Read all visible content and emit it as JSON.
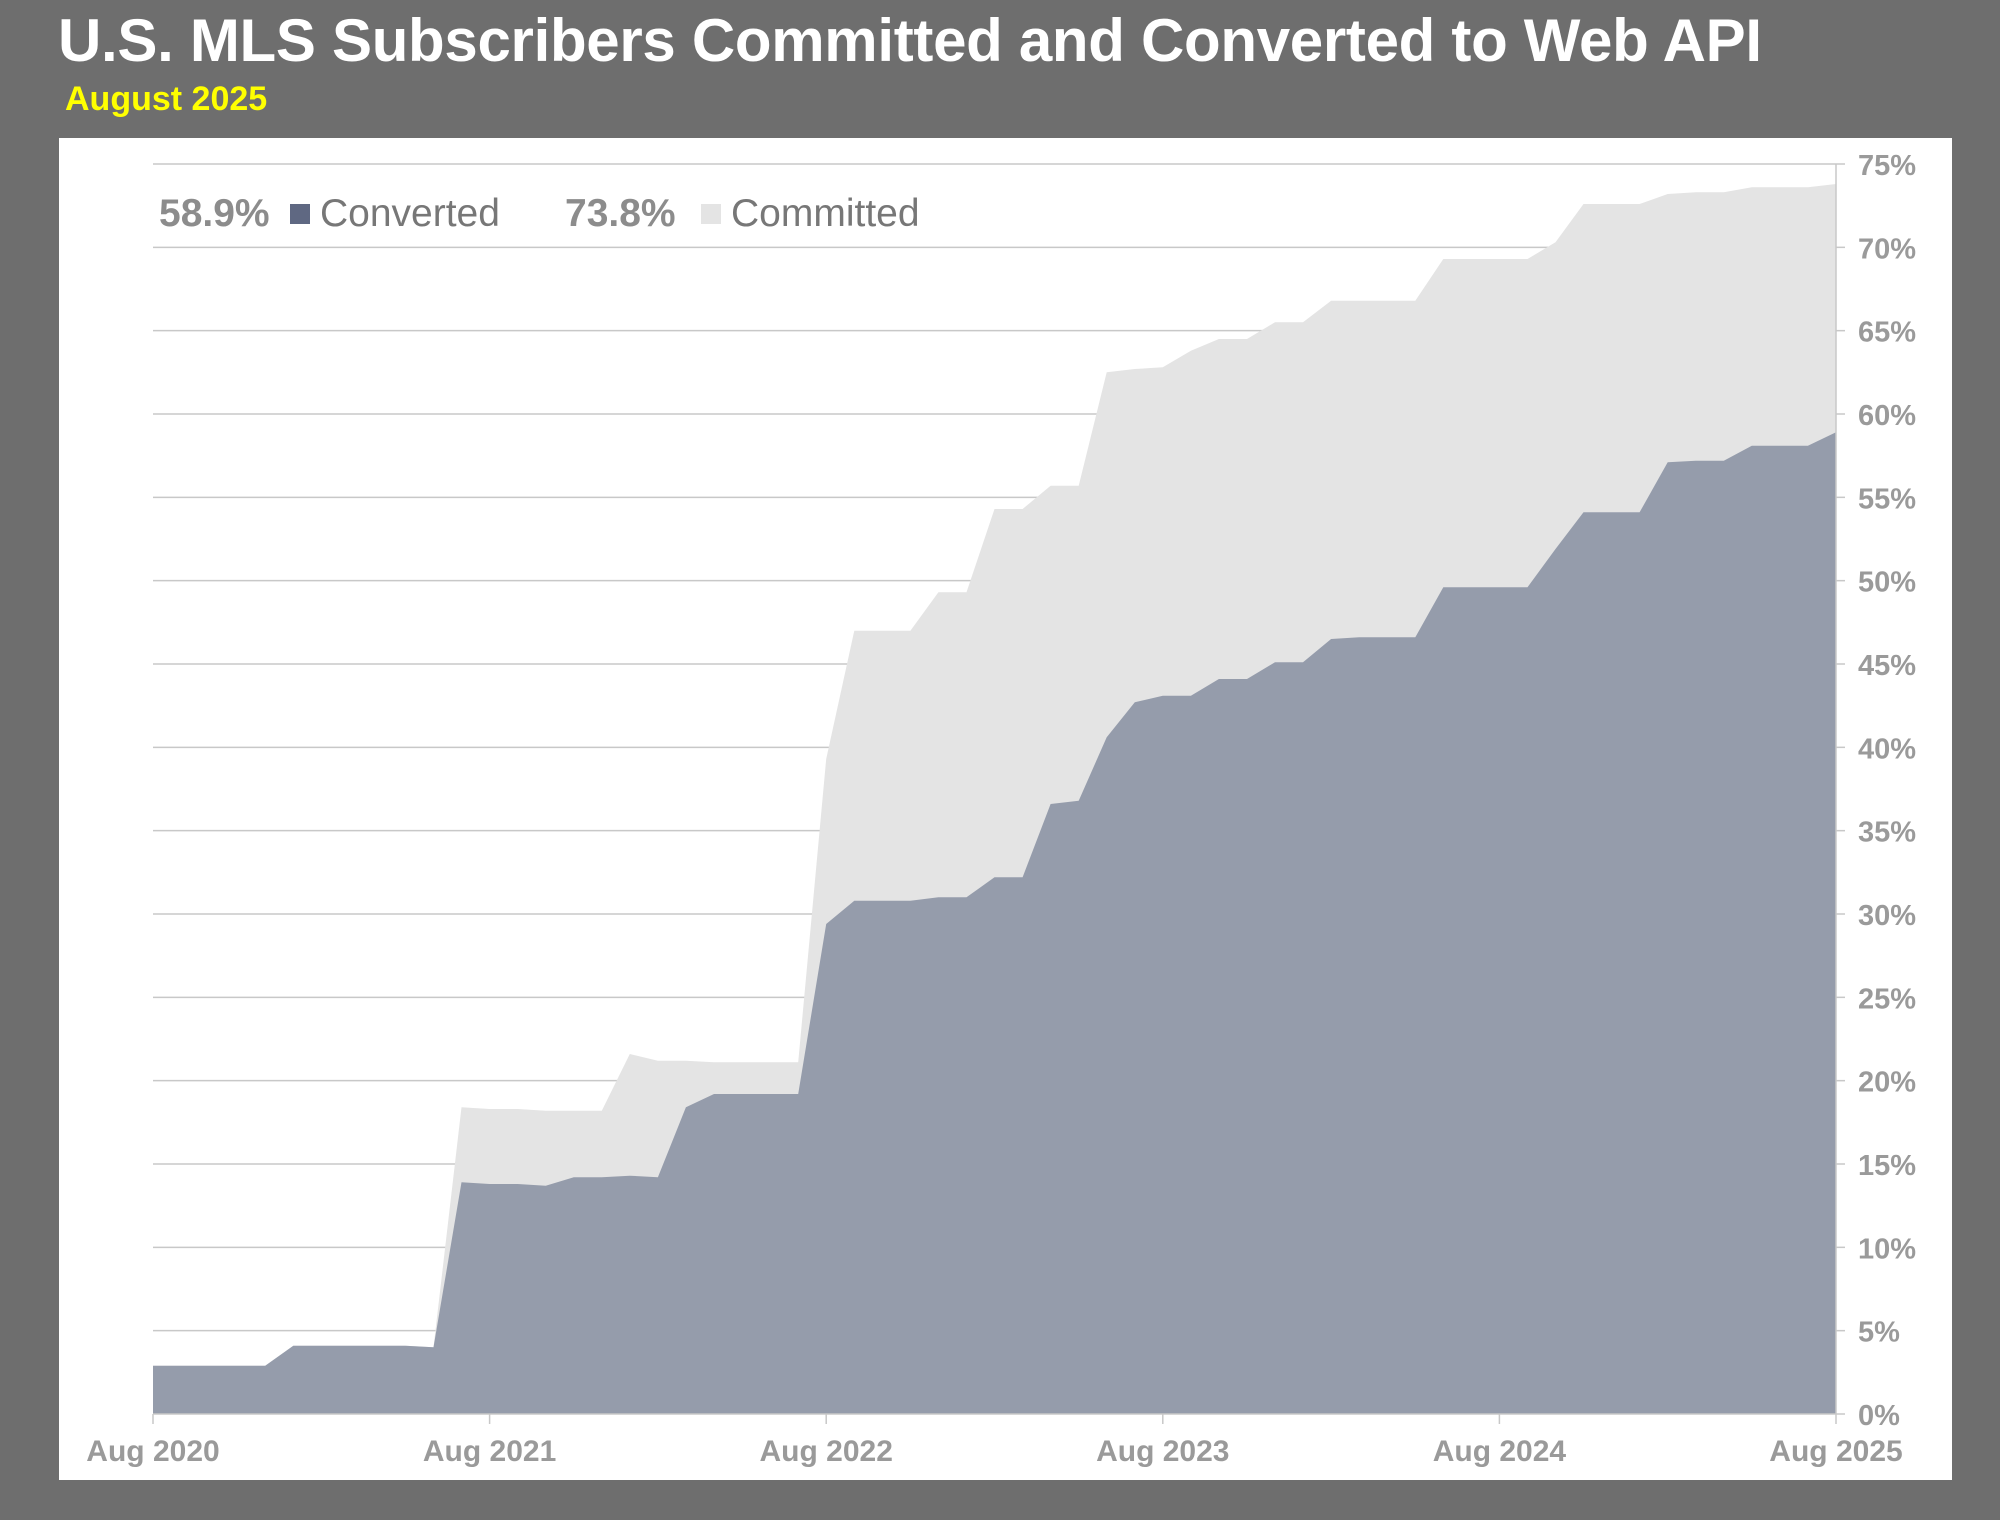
{
  "header": {
    "title": "U.S. MLS Subscribers Committed and Converted to Web API",
    "subtitle": "August 2025"
  },
  "colors": {
    "background": "#6e6e6e",
    "panel": "#ffffff",
    "title": "#ffffff",
    "subtitle": "#ffff00",
    "converted": "#959cab",
    "converted_legend": "#5f6882",
    "committed": "#e4e4e4",
    "grid": "#c8c8c8",
    "tick_text": "#9a9a9a"
  },
  "chart_data": {
    "type": "area",
    "title": "U.S. MLS Subscribers Committed and Converted to Web API",
    "subtitle": "August 2025",
    "xlabel": "",
    "ylabel": "",
    "x_start": "Aug 2020",
    "x_end": "Aug 2025",
    "x_tick_labels": [
      "Aug 2020",
      "Aug 2021",
      "Aug 2022",
      "Aug 2023",
      "Aug 2024",
      "Aug 2025"
    ],
    "y_tick_labels": [
      "0%",
      "5%",
      "10%",
      "15%",
      "20%",
      "25%",
      "30%",
      "35%",
      "40%",
      "45%",
      "50%",
      "55%",
      "60%",
      "65%",
      "70%",
      "75%"
    ],
    "ylim": [
      0,
      75
    ],
    "y_axis_side": "right",
    "grid": true,
    "stacked": false,
    "legend": {
      "placement": "top-left",
      "entries": [
        {
          "value": "58.9%",
          "label": "Converted"
        },
        {
          "value": "73.8%",
          "label": "Committed"
        }
      ]
    },
    "series": [
      {
        "name": "Committed",
        "points": [
          [
            "Aug 2020",
            2.9
          ],
          [
            "Sep 2020",
            2.9
          ],
          [
            "Oct 2020",
            2.9
          ],
          [
            "Nov 2020",
            2.9
          ],
          [
            "Dec 2020",
            2.9
          ],
          [
            "Jan 2021",
            4.1
          ],
          [
            "Feb 2021",
            4.1
          ],
          [
            "Mar 2021",
            4.1
          ],
          [
            "Apr 2021",
            4.1
          ],
          [
            "May 2021",
            4.1
          ],
          [
            "Jun 2021",
            4.0
          ],
          [
            "Jul 2021",
            18.4
          ],
          [
            "Aug 2021",
            18.3
          ],
          [
            "Sep 2021",
            18.3
          ],
          [
            "Oct 2021",
            18.2
          ],
          [
            "Nov 2021",
            18.2
          ],
          [
            "Dec 2021",
            18.2
          ],
          [
            "Jan 2022",
            21.6
          ],
          [
            "Feb 2022",
            21.2
          ],
          [
            "Mar 2022",
            21.2
          ],
          [
            "Apr 2022",
            21.1
          ],
          [
            "May 2022",
            21.1
          ],
          [
            "Jun 2022",
            21.1
          ],
          [
            "Jul 2022",
            21.1
          ],
          [
            "Aug 2022",
            39.3
          ],
          [
            "Sep 2022",
            47.0
          ],
          [
            "Oct 2022",
            47.0
          ],
          [
            "Nov 2022",
            47.0
          ],
          [
            "Dec 2022",
            49.3
          ],
          [
            "Jan 2023",
            49.3
          ],
          [
            "Feb 2023",
            54.3
          ],
          [
            "Mar 2023",
            54.3
          ],
          [
            "Apr 2023",
            55.7
          ],
          [
            "May 2023",
            55.7
          ],
          [
            "Jun 2023",
            62.5
          ],
          [
            "Jul 2023",
            62.7
          ],
          [
            "Aug 2023",
            62.8
          ],
          [
            "Sep 2023",
            63.8
          ],
          [
            "Oct 2023",
            64.5
          ],
          [
            "Nov 2023",
            64.5
          ],
          [
            "Dec 2023",
            65.5
          ],
          [
            "Jan 2024",
            65.5
          ],
          [
            "Feb 2024",
            66.8
          ],
          [
            "Mar 2024",
            66.8
          ],
          [
            "Apr 2024",
            66.8
          ],
          [
            "May 2024",
            66.8
          ],
          [
            "Jun 2024",
            69.3
          ],
          [
            "Jul 2024",
            69.3
          ],
          [
            "Aug 2024",
            69.3
          ],
          [
            "Sep 2024",
            69.3
          ],
          [
            "Oct 2024",
            70.3
          ],
          [
            "Nov 2024",
            72.6
          ],
          [
            "Dec 2024",
            72.6
          ],
          [
            "Jan 2025",
            72.6
          ],
          [
            "Feb 2025",
            73.2
          ],
          [
            "Mar 2025",
            73.3
          ],
          [
            "Apr 2025",
            73.3
          ],
          [
            "May 2025",
            73.6
          ],
          [
            "Jun 2025",
            73.6
          ],
          [
            "Jul 2025",
            73.6
          ],
          [
            "Aug 2025",
            73.8
          ]
        ]
      },
      {
        "name": "Converted",
        "points": [
          [
            "Aug 2020",
            2.9
          ],
          [
            "Sep 2020",
            2.9
          ],
          [
            "Oct 2020",
            2.9
          ],
          [
            "Nov 2020",
            2.9
          ],
          [
            "Dec 2020",
            2.9
          ],
          [
            "Jan 2021",
            4.1
          ],
          [
            "Feb 2021",
            4.1
          ],
          [
            "Mar 2021",
            4.1
          ],
          [
            "Apr 2021",
            4.1
          ],
          [
            "May 2021",
            4.1
          ],
          [
            "Jun 2021",
            4.0
          ],
          [
            "Jul 2021",
            13.9
          ],
          [
            "Aug 2021",
            13.8
          ],
          [
            "Sep 2021",
            13.8
          ],
          [
            "Oct 2021",
            13.7
          ],
          [
            "Nov 2021",
            14.2
          ],
          [
            "Dec 2021",
            14.2
          ],
          [
            "Jan 2022",
            14.3
          ],
          [
            "Feb 2022",
            14.2
          ],
          [
            "Mar 2022",
            18.4
          ],
          [
            "Apr 2022",
            19.2
          ],
          [
            "May 2022",
            19.2
          ],
          [
            "Jun 2022",
            19.2
          ],
          [
            "Jul 2022",
            19.2
          ],
          [
            "Aug 2022",
            29.4
          ],
          [
            "Sep 2022",
            30.8
          ],
          [
            "Oct 2022",
            30.8
          ],
          [
            "Nov 2022",
            30.8
          ],
          [
            "Dec 2022",
            31.0
          ],
          [
            "Jan 2023",
            31.0
          ],
          [
            "Feb 2023",
            32.2
          ],
          [
            "Mar 2023",
            32.2
          ],
          [
            "Apr 2023",
            36.6
          ],
          [
            "May 2023",
            36.8
          ],
          [
            "Jun 2023",
            40.6
          ],
          [
            "Jul 2023",
            42.7
          ],
          [
            "Aug 2023",
            43.1
          ],
          [
            "Sep 2023",
            43.1
          ],
          [
            "Oct 2023",
            44.1
          ],
          [
            "Nov 2023",
            44.1
          ],
          [
            "Dec 2023",
            45.1
          ],
          [
            "Jan 2024",
            45.1
          ],
          [
            "Feb 2024",
            46.5
          ],
          [
            "Mar 2024",
            46.6
          ],
          [
            "Apr 2024",
            46.6
          ],
          [
            "May 2024",
            46.6
          ],
          [
            "Jun 2024",
            49.6
          ],
          [
            "Jul 2024",
            49.6
          ],
          [
            "Aug 2024",
            49.6
          ],
          [
            "Sep 2024",
            49.6
          ],
          [
            "Oct 2024",
            51.9
          ],
          [
            "Nov 2024",
            54.1
          ],
          [
            "Dec 2024",
            54.1
          ],
          [
            "Jan 2025",
            54.1
          ],
          [
            "Feb 2025",
            57.1
          ],
          [
            "Mar 2025",
            57.2
          ],
          [
            "Apr 2025",
            57.2
          ],
          [
            "May 2025",
            58.1
          ],
          [
            "Jun 2025",
            58.1
          ],
          [
            "Jul 2025",
            58.1
          ],
          [
            "Aug 2025",
            58.9
          ]
        ]
      }
    ]
  }
}
